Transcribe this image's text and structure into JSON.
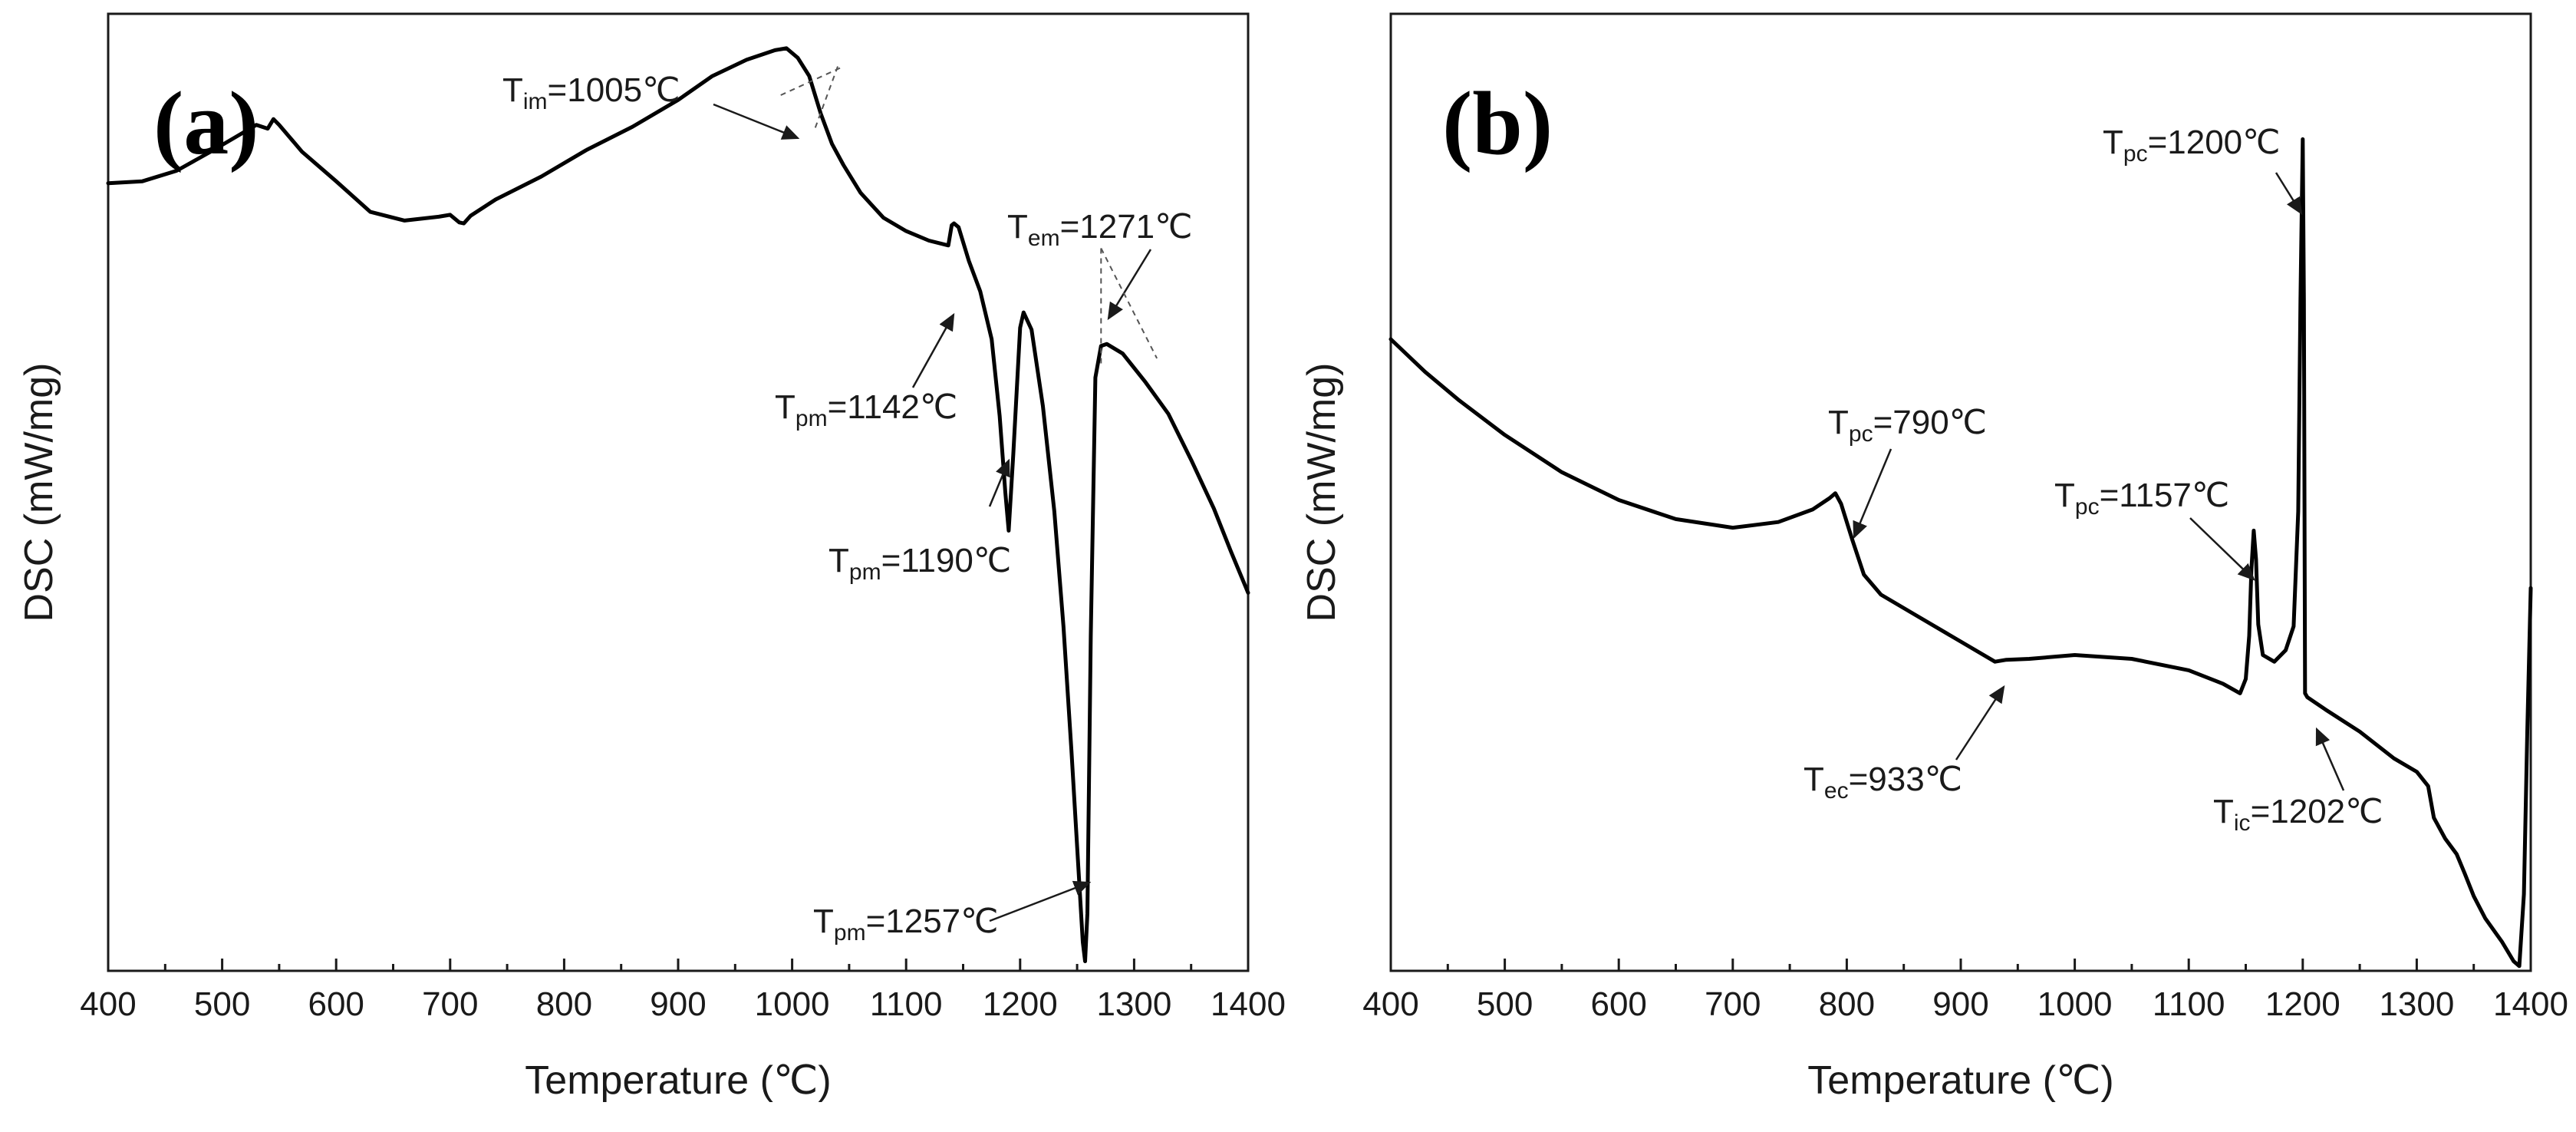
{
  "chart_data": [
    {
      "type": "line",
      "panel_label": "(a)",
      "xlabel": "Temperature (℃)",
      "ylabel": "DSC (mW/mg)",
      "xlim": [
        400,
        1400
      ],
      "ylim": [
        0,
        100
      ],
      "xticks": [
        400,
        500,
        600,
        700,
        800,
        900,
        1000,
        1100,
        1200,
        1300,
        1400
      ],
      "xtick_labels": [
        "400",
        "500",
        "600",
        "700",
        "800",
        "900",
        "1000",
        "1100",
        "1200",
        "1300",
        "1400"
      ],
      "y_tick_labels_shown": false,
      "series": [
        {
          "name": "DSC",
          "x": [
            400,
            430,
            460,
            490,
            510,
            530,
            540,
            545,
            550,
            570,
            600,
            630,
            660,
            690,
            700,
            708,
            712,
            718,
            740,
            780,
            820,
            860,
            900,
            930,
            960,
            985,
            995,
            1005,
            1015,
            1025,
            1035,
            1045,
            1060,
            1080,
            1100,
            1120,
            1137,
            1140,
            1142,
            1146,
            1155,
            1165,
            1175,
            1182,
            1187,
            1190,
            1194,
            1200,
            1203,
            1210,
            1220,
            1230,
            1238,
            1245,
            1250,
            1255,
            1257,
            1259,
            1262,
            1266,
            1271,
            1276,
            1290,
            1310,
            1330,
            1350,
            1370,
            1385,
            1400
          ],
          "y": [
            82.3,
            82.5,
            83.6,
            85.6,
            87.0,
            88.4,
            88.0,
            89.0,
            88.4,
            85.6,
            82.5,
            79.3,
            78.4,
            78.8,
            79.0,
            78.2,
            78.1,
            78.9,
            80.6,
            83.0,
            85.8,
            88.2,
            91.0,
            93.5,
            95.2,
            96.2,
            96.4,
            95.4,
            93.5,
            89.6,
            86.4,
            84.2,
            81.3,
            78.7,
            77.3,
            76.3,
            75.8,
            77.9,
            78.1,
            77.7,
            74.2,
            71.0,
            66.0,
            58.0,
            50.0,
            46.0,
            54.0,
            67.2,
            68.8,
            67.0,
            59.0,
            48.0,
            36.0,
            23.0,
            13.0,
            3.0,
            1.0,
            6.0,
            35.0,
            62.0,
            65.3,
            65.5,
            64.5,
            61.5,
            58.2,
            53.4,
            48.3,
            43.8,
            39.5
          ]
        }
      ],
      "annotations": [
        {
          "main": "T",
          "sub": "im",
          "value": "=1005℃",
          "x": 1005
        },
        {
          "main": "T",
          "sub": "em",
          "value": "=1271℃",
          "x": 1271
        },
        {
          "main": "T",
          "sub": "pm",
          "value": "=1142℃",
          "x": 1142
        },
        {
          "main": "T",
          "sub": "pm",
          "value": "=1190℃",
          "x": 1190
        },
        {
          "main": "T",
          "sub": "pm",
          "value": "=1257℃",
          "x": 1257
        }
      ]
    },
    {
      "type": "line",
      "panel_label": "(b)",
      "xlabel": "Temperature (℃)",
      "ylabel": "DSC (mW/mg)",
      "xlim": [
        400,
        1400
      ],
      "ylim": [
        0,
        100
      ],
      "xticks": [
        400,
        500,
        600,
        700,
        800,
        900,
        1000,
        1100,
        1200,
        1300,
        1400
      ],
      "xtick_labels": [
        "400",
        "500",
        "600",
        "700",
        "800",
        "900",
        "1000",
        "1100",
        "1200",
        "1300",
        "1400"
      ],
      "y_tick_labels_shown": false,
      "series": [
        {
          "name": "DSC",
          "x": [
            400,
            430,
            460,
            500,
            550,
            600,
            650,
            700,
            740,
            770,
            785,
            790,
            795,
            805,
            815,
            830,
            860,
            900,
            930,
            940,
            960,
            1000,
            1050,
            1100,
            1130,
            1145,
            1150,
            1153,
            1155,
            1157,
            1159,
            1161,
            1165,
            1175,
            1185,
            1192,
            1196,
            1198,
            1200,
            1201,
            1202,
            1204,
            1220,
            1250,
            1280,
            1300,
            1310,
            1315,
            1325,
            1335,
            1342,
            1350,
            1360,
            1375,
            1385,
            1390,
            1394,
            1397,
            1400
          ],
          "y": [
            66.0,
            62.6,
            59.6,
            56.0,
            52.1,
            49.2,
            47.2,
            46.3,
            46.9,
            48.2,
            49.4,
            49.9,
            48.8,
            45.0,
            41.4,
            39.3,
            37.2,
            34.4,
            32.3,
            32.5,
            32.6,
            33.0,
            32.6,
            31.4,
            30.0,
            29.0,
            30.5,
            35.0,
            42.0,
            46.0,
            43.0,
            36.2,
            33.0,
            32.3,
            33.5,
            36.0,
            48.0,
            70.0,
            86.9,
            70.0,
            29.0,
            28.6,
            27.3,
            25.0,
            22.2,
            20.8,
            19.3,
            16.0,
            13.8,
            12.2,
            10.2,
            7.8,
            5.5,
            3.0,
            1.0,
            0.5,
            8.0,
            25.0,
            40.0
          ]
        }
      ],
      "annotations": [
        {
          "main": "T",
          "sub": "pc",
          "value": "=1200℃",
          "x": 1200
        },
        {
          "main": "T",
          "sub": "pc",
          "value": "=790℃",
          "x": 790
        },
        {
          "main": "T",
          "sub": "pc",
          "value": "=1157℃",
          "x": 1157
        },
        {
          "main": "T",
          "sub": "ec",
          "value": "=933℃",
          "x": 933
        },
        {
          "main": "T",
          "sub": "ic",
          "value": "=1202℃",
          "x": 1202
        }
      ]
    }
  ]
}
